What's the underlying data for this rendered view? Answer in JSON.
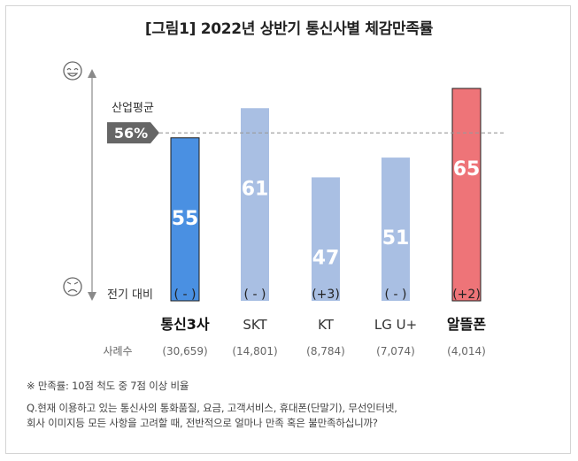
{
  "title": "[그림1] 2022년 상반기 통신사별 체감만족률",
  "chart_data": {
    "type": "bar",
    "title": "[그림1] 2022년 상반기 통신사별 체감만족률",
    "categories": [
      "통신3사",
      "SKT",
      "KT",
      "LG U+",
      "알뜰폰"
    ],
    "values": [
      55,
      61,
      47,
      51,
      65
    ],
    "value_labels": [
      "55",
      "61",
      "47",
      "51",
      "65"
    ],
    "change_label": "전기 대비",
    "changes": [
      "( - )",
      "( - )",
      "(+3)",
      "( - )",
      "(+2)"
    ],
    "sample_label": "사례수",
    "samples": [
      "(30,659)",
      "(14,801)",
      "(8,784)",
      "(7,074)",
      "(4,014)"
    ],
    "reference_line": {
      "label": "산업평균",
      "value": 56,
      "value_label": "56%"
    },
    "ylim": [
      22,
      70
    ],
    "grid": false,
    "colors": {
      "통신3사": "#4a90e2",
      "SKT": "#a9bfe3",
      "KT": "#a9bfe3",
      "LG U+": "#a9bfe3",
      "알뜰폰": "#ee7478"
    },
    "axis_icons": {
      "top": "smiling-face-icon",
      "bottom": "frowning-face-icon"
    }
  },
  "footnotes": {
    "note": "※ 만족률: 10점 척도 중 7점 이상 비율",
    "question_line1": "Q.현재 이용하고 있는 통신사의 통화품질, 요금, 고객서비스, 휴대폰(단말기), 무선인터넷,",
    "question_line2": "회사 이미지등 모든 사항을 고려할 때, 전반적으로 얼마나 만족 혹은 불만족하십니까?"
  }
}
